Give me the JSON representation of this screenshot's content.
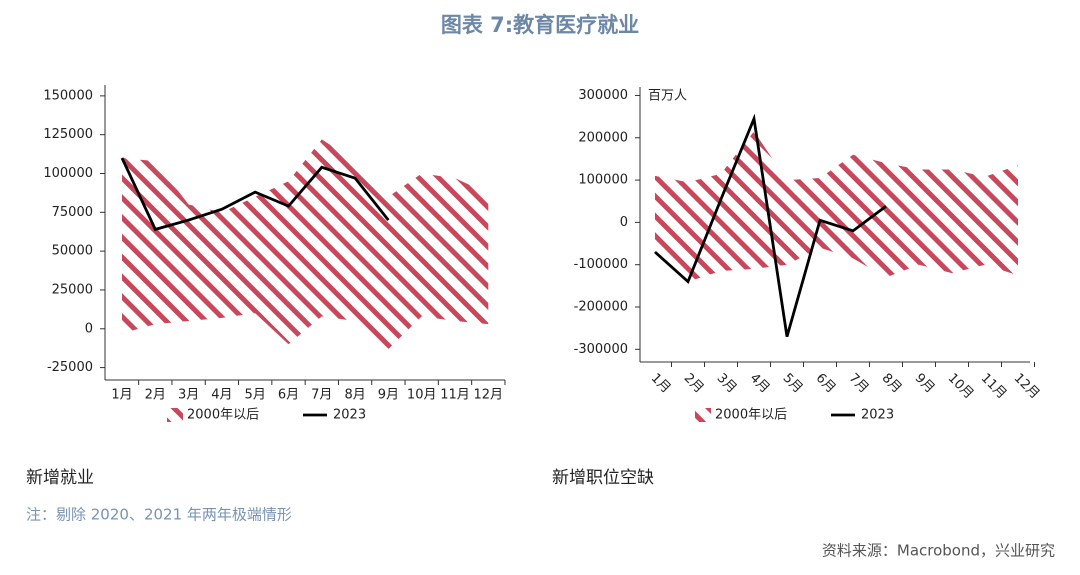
{
  "title": "图表 7:教育医疗就业",
  "chart_data": [
    {
      "type": "band",
      "caption": "新增就业",
      "categories": [
        "1月",
        "2月",
        "3月",
        "4月",
        "5月",
        "6月",
        "7月",
        "8月",
        "9月",
        "10月",
        "11月",
        "12月"
      ],
      "series": [
        {
          "name": "2000年以后",
          "color": "#c8475a",
          "high": [
            110000,
            108000,
            80000,
            75000,
            85000,
            95000,
            122000,
            108000,
            85000,
            100000,
            97000,
            87000
          ],
          "low": [
            -3000,
            3000,
            5000,
            7000,
            10000,
            -10000,
            8000,
            5000,
            -13000,
            8000,
            5000,
            3000
          ]
        },
        {
          "name": "2023",
          "color": "#000000",
          "values": [
            110000,
            64000,
            70000,
            77000,
            88000,
            79000,
            104000,
            97000,
            70000,
            null,
            null,
            null
          ]
        }
      ],
      "ylim": [
        -33000,
        157000
      ],
      "yticks": [
        -25000,
        0,
        25000,
        50000,
        75000,
        100000,
        125000,
        150000
      ],
      "grid": false,
      "legend": "bottom"
    },
    {
      "type": "band",
      "caption": "新增职位空缺",
      "annotation": "百万人",
      "categories": [
        "1月",
        "2月",
        "3月",
        "4月",
        "5月",
        "6月",
        "7月",
        "8月",
        "9月",
        "10月",
        "11月",
        "12月"
      ],
      "series": [
        {
          "name": "2000年以后",
          "color": "#c8475a",
          "high": [
            110000,
            95000,
            115000,
            215000,
            100000,
            105000,
            160000,
            140000,
            125000,
            125000,
            108000,
            135000
          ],
          "low": [
            -60000,
            -140000,
            -115000,
            -110000,
            -100000,
            -60000,
            -85000,
            -130000,
            -100000,
            -120000,
            -100000,
            -125000
          ]
        },
        {
          "name": "2023",
          "color": "#000000",
          "values": [
            -70000,
            -140000,
            55000,
            245000,
            -270000,
            5000,
            -20000,
            38000,
            null,
            null,
            null,
            null
          ]
        }
      ],
      "ylim": [
        -330000,
        320000
      ],
      "yticks": [
        -300000,
        -200000,
        -100000,
        0,
        100000,
        200000,
        300000
      ],
      "grid": false,
      "legend": "bottom",
      "rotate_x_labels": true
    }
  ],
  "note": "注：剔除 2020、2021 年两年极端情形",
  "source": "资料来源：Macrobond，兴业研究"
}
